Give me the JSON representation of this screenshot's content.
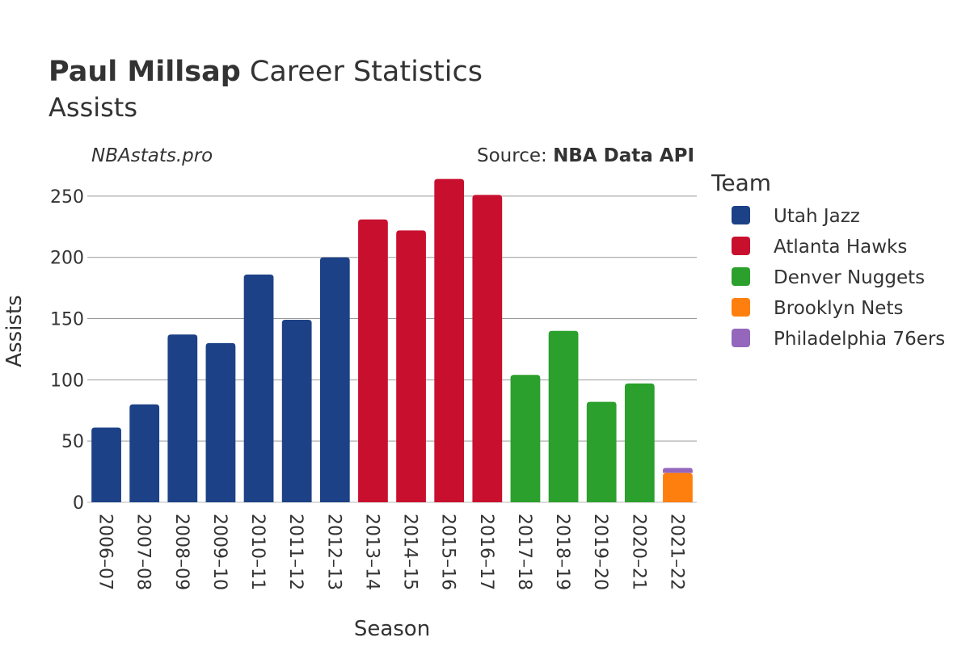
{
  "title": {
    "player": "Paul Millsap",
    "rest": " Career Statistics",
    "subtitle": "Assists"
  },
  "watermark": "NBAstats.pro",
  "source": {
    "prefix": "Source: ",
    "name": "NBA Data API"
  },
  "legend": {
    "title": "Team",
    "items": [
      {
        "name": "Utah Jazz",
        "color": "#1c4187"
      },
      {
        "name": "Atlanta Hawks",
        "color": "#c8102e"
      },
      {
        "name": "Denver Nuggets",
        "color": "#2ca02c"
      },
      {
        "name": "Brooklyn Nets",
        "color": "#ff7f0e"
      },
      {
        "name": "Philadelphia 76ers",
        "color": "#9467bd"
      }
    ]
  },
  "chart_data": {
    "type": "bar",
    "stacked": true,
    "xlabel": "Season",
    "ylabel": "Assists",
    "ylim": [
      0,
      275
    ],
    "yticks": [
      0,
      50,
      100,
      150,
      200,
      250
    ],
    "grid": true,
    "legend_position": "right",
    "categories": [
      "2006–07",
      "2007–08",
      "2008–09",
      "2009–10",
      "2010–11",
      "2011–12",
      "2012–13",
      "2013–14",
      "2014–15",
      "2015–16",
      "2016–17",
      "2017–18",
      "2018–19",
      "2019–20",
      "2020–21",
      "2021–22"
    ],
    "series": [
      {
        "name": "Utah Jazz",
        "color": "#1c4187",
        "values": [
          61,
          80,
          137,
          130,
          186,
          149,
          200,
          null,
          null,
          null,
          null,
          null,
          null,
          null,
          null,
          null
        ]
      },
      {
        "name": "Atlanta Hawks",
        "color": "#c8102e",
        "values": [
          null,
          null,
          null,
          null,
          null,
          null,
          null,
          231,
          222,
          264,
          251,
          null,
          null,
          null,
          null,
          null
        ]
      },
      {
        "name": "Denver Nuggets",
        "color": "#2ca02c",
        "values": [
          null,
          null,
          null,
          null,
          null,
          null,
          null,
          null,
          null,
          null,
          null,
          104,
          140,
          82,
          97,
          null
        ]
      },
      {
        "name": "Brooklyn Nets",
        "color": "#ff7f0e",
        "values": [
          null,
          null,
          null,
          null,
          null,
          null,
          null,
          null,
          null,
          null,
          null,
          null,
          null,
          null,
          null,
          24
        ]
      },
      {
        "name": "Philadelphia 76ers",
        "color": "#9467bd",
        "values": [
          null,
          null,
          null,
          null,
          null,
          null,
          null,
          null,
          null,
          null,
          null,
          null,
          null,
          null,
          null,
          4
        ]
      }
    ]
  }
}
